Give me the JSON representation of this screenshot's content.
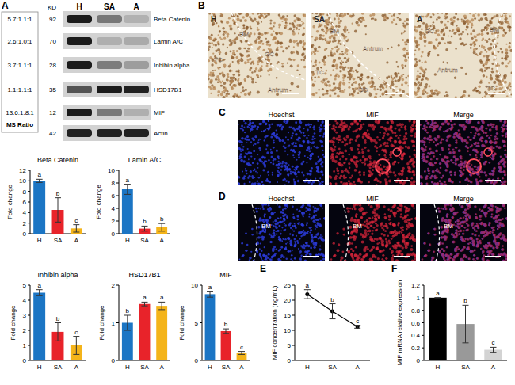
{
  "panel_labels": [
    "A",
    "B",
    "C",
    "D",
    "E",
    "F"
  ],
  "blot": {
    "kd_header": "KD",
    "lanes": [
      "H",
      "SA",
      "A"
    ],
    "ms_title": "MS Ratio",
    "rows": [
      {
        "protein": "Beta Catenin",
        "kd": 92,
        "ms_ratio": "5.7:1.1:1"
      },
      {
        "protein": "Lamin A/C",
        "kd": 70,
        "ms_ratio": "2.6:1.0:1"
      },
      {
        "protein": "Inhibin alpha",
        "kd": 28,
        "ms_ratio": "3.7:1.1:1"
      },
      {
        "protein": "HSD17B1",
        "kd": 35,
        "ms_ratio": "1.1:1.1:1"
      },
      {
        "protein": "MIF",
        "kd": 12,
        "ms_ratio": "13.6:1.8:1"
      },
      {
        "protein": "Actin",
        "kd": 42
      }
    ]
  },
  "ihc": {
    "panels": [
      {
        "title": "H",
        "labels": [
          "TC",
          "BM",
          "GC",
          "Antrum"
        ]
      },
      {
        "title": "SA",
        "labels": [
          "BM",
          "TC",
          "Antrum",
          "GC"
        ]
      },
      {
        "title": "A",
        "labels": [
          "GC",
          "BM",
          "Antrum",
          "TC"
        ]
      }
    ]
  },
  "fluorescence": {
    "channels": [
      "Hoechst",
      "MIF",
      "Merge"
    ],
    "d_label": "BM"
  },
  "chart_data": [
    {
      "type": "bar",
      "title": "Beta Catenin",
      "categories": [
        "H",
        "SA",
        "A"
      ],
      "values": [
        10,
        4.5,
        1
      ],
      "errors": [
        0.3,
        2.3,
        0.7
      ],
      "significance": [
        "a",
        "b",
        "c"
      ],
      "colors": [
        "#1b75c4",
        "#e8232a",
        "#f4b41a"
      ],
      "y_label": "Fold change",
      "ylim": [
        0,
        12
      ],
      "yticks": [
        0,
        2,
        4,
        6,
        8,
        10,
        12
      ]
    },
    {
      "type": "bar",
      "title": "Lamin A/C",
      "categories": [
        "H",
        "SA",
        "A"
      ],
      "values": [
        7,
        0.8,
        1.0
      ],
      "errors": [
        0.8,
        0.4,
        0.6
      ],
      "significance": [
        "a",
        "b",
        "b"
      ],
      "colors": [
        "#1b75c4",
        "#e8232a",
        "#f4b41a"
      ],
      "y_label": "Fold change",
      "ylim": [
        0,
        10
      ],
      "yticks": [
        0,
        2,
        4,
        6,
        8,
        10
      ]
    },
    {
      "type": "bar",
      "title": "Inhibin alpha",
      "categories": [
        "H",
        "SA",
        "A"
      ],
      "values": [
        4.5,
        1.9,
        1.0
      ],
      "errors": [
        0.2,
        0.6,
        0.6
      ],
      "significance": [
        "a",
        "b",
        "c"
      ],
      "colors": [
        "#1b75c4",
        "#e8232a",
        "#f4b41a"
      ],
      "y_label": "Fold change",
      "ylim": [
        0,
        5
      ],
      "yticks": [
        0,
        1,
        2,
        3,
        4,
        5
      ]
    },
    {
      "type": "bar",
      "title": "HSD17B1",
      "categories": [
        "H",
        "SA",
        "A"
      ],
      "values": [
        1.0,
        1.5,
        1.45
      ],
      "errors": [
        0.2,
        0.05,
        0.1
      ],
      "significance": [
        "b",
        "a",
        "a"
      ],
      "colors": [
        "#1b75c4",
        "#e8232a",
        "#f4b41a"
      ],
      "y_label": "Fold change",
      "ylim": [
        0,
        2
      ],
      "yticks": [
        0,
        1,
        2
      ]
    },
    {
      "type": "bar",
      "title": "MIF",
      "categories": [
        "H",
        "SA",
        "A"
      ],
      "values": [
        8.8,
        3.9,
        1.0
      ],
      "errors": [
        0.4,
        0.3,
        0.2
      ],
      "significance": [
        "a",
        "b",
        "c"
      ],
      "colors": [
        "#1b75c4",
        "#e8232a",
        "#f4b41a"
      ],
      "y_label": "Fold change",
      "ylim": [
        0,
        10
      ],
      "yticks": [
        0,
        5,
        10
      ]
    },
    {
      "type": "line",
      "categories": [
        "H",
        "SA",
        "A"
      ],
      "values": [
        22,
        16.3,
        11.2
      ],
      "errors": [
        1.5,
        2.5,
        0.5
      ],
      "significance": [
        "a",
        "b",
        "c"
      ],
      "color": "#000000",
      "marker": "circle",
      "y_label": "MIF concentration (ng/mL)",
      "ylim": [
        0,
        25
      ],
      "yticks": [
        0,
        5,
        10,
        15,
        20,
        25
      ]
    },
    {
      "type": "bar",
      "categories": [
        "H",
        "SA",
        "A"
      ],
      "values": [
        1.0,
        0.58,
        0.17
      ],
      "errors": [
        0,
        0.3,
        0.04
      ],
      "significance": [
        "a",
        "b",
        "c"
      ],
      "colors": [
        "#000000",
        "#999999",
        "#d3d3d3"
      ],
      "y_label": "MIF mRNA relative expression",
      "ylim": [
        0,
        1.2
      ],
      "yticks": [
        0,
        0.2,
        0.4,
        0.6,
        0.8,
        1,
        1.2
      ]
    }
  ]
}
